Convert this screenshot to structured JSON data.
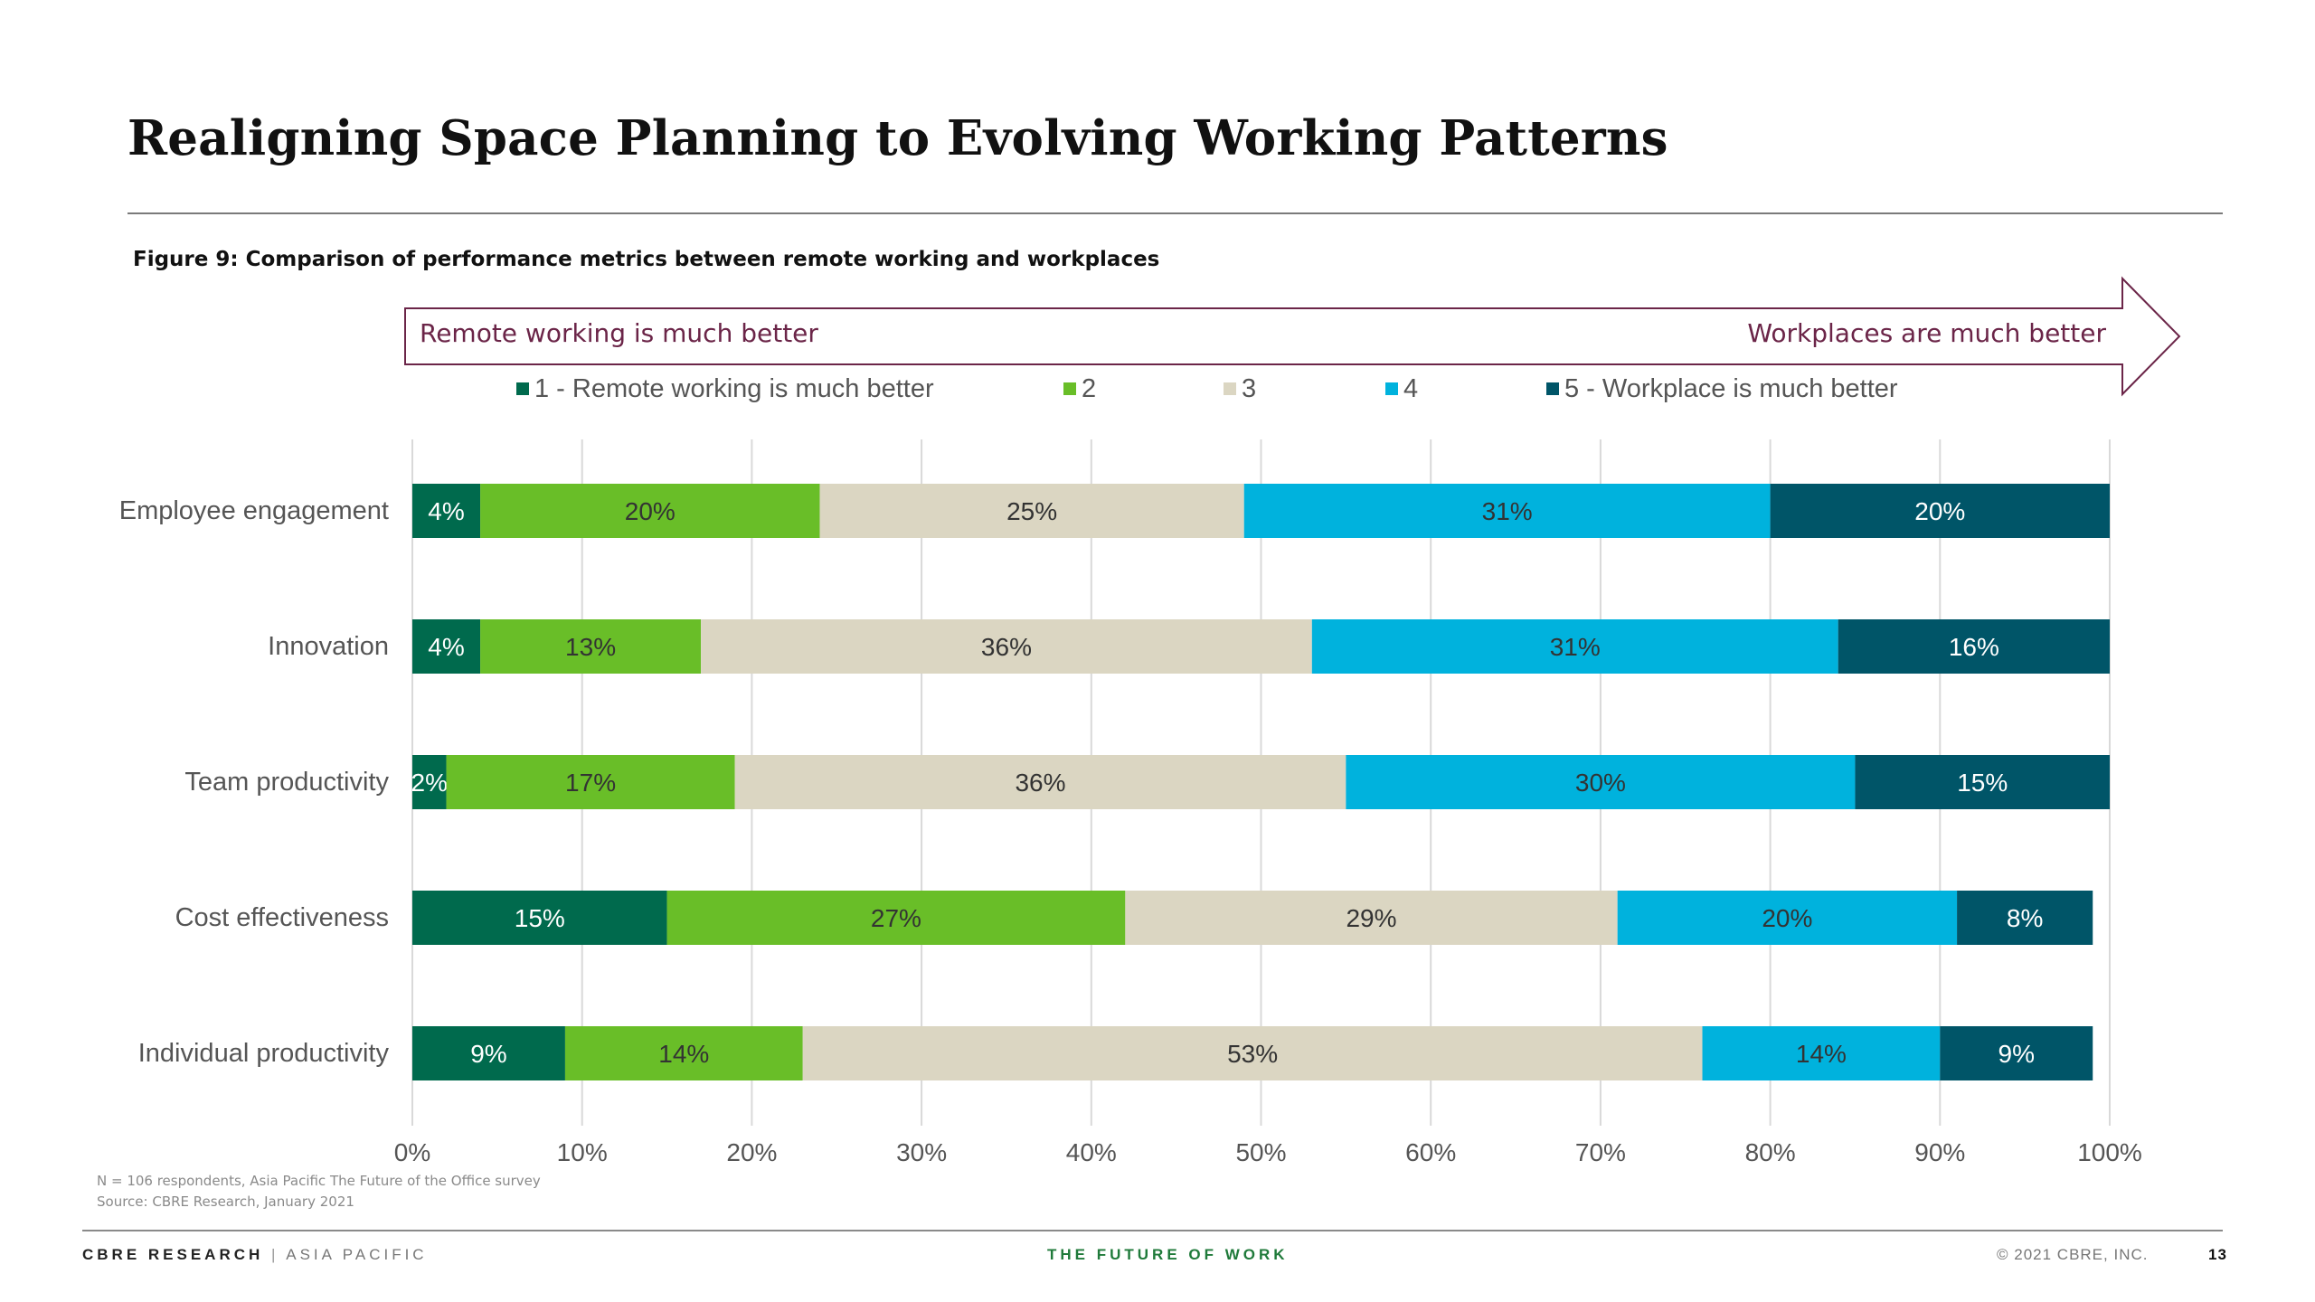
{
  "page": {
    "title": "Realigning Space Planning to Evolving Working Patterns",
    "figure_caption": "Figure 9: Comparison of performance metrics between remote working and workplaces",
    "banner": {
      "left_text": "Remote working is much better",
      "right_text": "Workplaces are much better",
      "color": "#6b2548"
    },
    "footnotes": {
      "n_text": "N = 106 respondents,  Asia Pacific The Future of the Office survey",
      "source_text": "Source: CBRE Research, January 2021"
    },
    "footer": {
      "brand": "CBRE RESEARCH",
      "separator": "|",
      "region": "ASIA PACIFIC",
      "center": "THE FUTURE OF WORK",
      "copyright": "© 2021 CBRE, INC.",
      "page_number": "13"
    }
  },
  "chart_data": {
    "type": "bar",
    "orientation": "horizontal",
    "stacked": true,
    "categories": [
      "Employee engagement",
      "Innovation",
      "Team productivity",
      "Cost effectiveness",
      "Individual productivity"
    ],
    "series": [
      {
        "name": "1 - Remote working is much better",
        "color": "#006a4d",
        "label_color": "#ffffff",
        "values": [
          4,
          4,
          2,
          15,
          9
        ]
      },
      {
        "name": "2",
        "color": "#69be28",
        "label_color": "#333333",
        "values": [
          20,
          13,
          17,
          27,
          14
        ]
      },
      {
        "name": "3",
        "color": "#dbd6c2",
        "label_color": "#333333",
        "values": [
          25,
          36,
          36,
          29,
          53
        ]
      },
      {
        "name": "4",
        "color": "#00b2dd",
        "label_color": "#333333",
        "values": [
          31,
          31,
          30,
          20,
          14
        ]
      },
      {
        "name": "5 - Workplace is much better",
        "color": "#005568",
        "label_color": "#ffffff",
        "values": [
          20,
          16,
          15,
          8,
          9
        ]
      }
    ],
    "value_labels": [
      [
        "4%",
        "20%",
        "25%",
        "31%",
        "20%"
      ],
      [
        "4%",
        "13%",
        "36%",
        "31%",
        "16%"
      ],
      [
        "2%",
        "17%",
        "36%",
        "30%",
        "15%"
      ],
      [
        "15%",
        "27%",
        "29%",
        "20%",
        "8%"
      ],
      [
        "9%",
        "14%",
        "53%",
        "14%",
        "9%"
      ]
    ],
    "xlim": [
      0,
      100
    ],
    "xticks": [
      0,
      10,
      20,
      30,
      40,
      50,
      60,
      70,
      80,
      90,
      100
    ],
    "xtick_labels": [
      "0%",
      "10%",
      "20%",
      "30%",
      "40%",
      "50%",
      "60%",
      "70%",
      "80%",
      "90%",
      "100%"
    ],
    "grid": "vertical",
    "legend_position": "top"
  }
}
